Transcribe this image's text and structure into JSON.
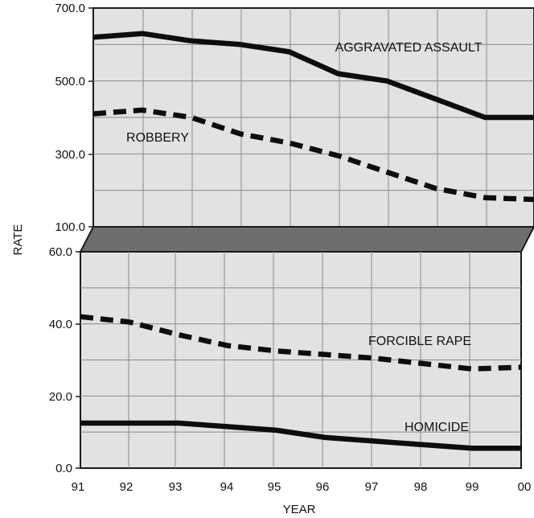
{
  "chart_data": [
    {
      "type": "line",
      "panel": "upper",
      "x": [
        "91",
        "92",
        "93",
        "94",
        "95",
        "96",
        "97",
        "98",
        "99",
        "00"
      ],
      "ylim": [
        100,
        700
      ],
      "yticks": [
        "700.0",
        "500.0",
        "300.0",
        "100.0"
      ],
      "series": [
        {
          "name": "AGGRAVATED ASSAULT",
          "style": "solid",
          "values": [
            620,
            630,
            610,
            600,
            580,
            520,
            500,
            450,
            400,
            400
          ]
        },
        {
          "name": "ROBBERY",
          "style": "dashed",
          "values": [
            410,
            420,
            400,
            355,
            330,
            295,
            250,
            205,
            180,
            175
          ]
        }
      ]
    },
    {
      "type": "line",
      "panel": "lower",
      "x": [
        "91",
        "92",
        "93",
        "94",
        "95",
        "96",
        "97",
        "98",
        "99",
        "00"
      ],
      "ylim": [
        0,
        60
      ],
      "yticks": [
        "60.0",
        "40.0",
        "20.0",
        "0.0"
      ],
      "series": [
        {
          "name": "FORCIBLE RAPE",
          "style": "dashed",
          "values": [
            42,
            40.5,
            37,
            34,
            32.5,
            31.5,
            30.5,
            29,
            27.5,
            28
          ]
        },
        {
          "name": "HOMICIDE",
          "style": "solid",
          "values": [
            12.5,
            12.5,
            12.5,
            11.5,
            10.5,
            8.5,
            7.5,
            6.5,
            5.5,
            5.5
          ]
        }
      ]
    }
  ],
  "xlabel": "YEAR",
  "ylabel": "RATE",
  "colors": {
    "line": "#0d0d0d",
    "plot_fill": "#e2e2e2",
    "break_band": "#6e6e6e"
  }
}
